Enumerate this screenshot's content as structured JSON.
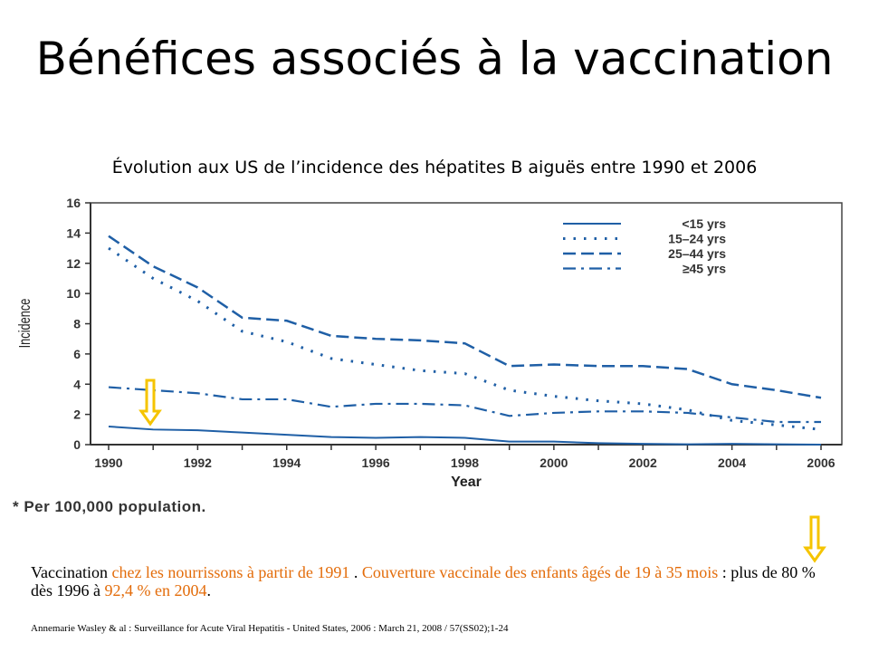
{
  "slide": {
    "title": "Bénéfices associés à la vaccination",
    "subtitle": "Évolution aux US de l’incidence des hépatites B aiguës entre 1990 et 2006",
    "footnote": "* Per 100,000 population.",
    "note": {
      "p1": "Vaccination ",
      "p2": "chez les nourrissons à partir de 1991 ",
      "p3": ". ",
      "p4": "Couverture vaccinale des enfants âgés de 19 à 35 mois",
      "p5": " : plus de 80 % dès 1996 à  ",
      "p6": "92,4 % en 2004",
      "p7": "."
    },
    "reference": "Annemarie Wasley & al : Surveillance for Acute Viral Hepatitis - United States, 2006 : March 21, 2008 / 57(SS02);1-24",
    "colors": {
      "series": "#1f5fa6",
      "accent_text": "#e36c0a",
      "arrow": "#f5c400"
    }
  },
  "chart_data": {
    "type": "line",
    "xlabel": "Year",
    "ylabel": "Incidence",
    "xlim": [
      1990,
      2006
    ],
    "ylim": [
      0,
      16
    ],
    "xticks": [
      "1990",
      "1992",
      "1994",
      "1996",
      "1998",
      "2000",
      "2002",
      "2004",
      "2006"
    ],
    "yticks": [
      "0",
      "2",
      "4",
      "6",
      "8",
      "10",
      "12",
      "14",
      "16"
    ],
    "legend_position": "top-right",
    "grid": false,
    "x": [
      1990,
      1991,
      1992,
      1993,
      1994,
      1995,
      1996,
      1997,
      1998,
      1999,
      2000,
      2001,
      2002,
      2003,
      2004,
      2005,
      2006
    ],
    "series": [
      {
        "name": "<15 yrs",
        "style": "solid",
        "values": [
          1.2,
          1.0,
          0.95,
          0.8,
          0.65,
          0.5,
          0.45,
          0.5,
          0.45,
          0.2,
          0.2,
          0.1,
          0.05,
          0.02,
          0.05,
          0.02,
          0.0
        ]
      },
      {
        "name": "15–24 yrs",
        "style": "dotted",
        "values": [
          13.0,
          11.0,
          9.5,
          7.5,
          6.8,
          5.7,
          5.3,
          4.9,
          4.7,
          3.6,
          3.2,
          2.9,
          2.7,
          2.3,
          1.6,
          1.3,
          1.0
        ]
      },
      {
        "name": "25–44 yrs",
        "style": "dashed",
        "values": [
          13.8,
          11.8,
          10.4,
          8.4,
          8.2,
          7.2,
          7.0,
          6.9,
          6.7,
          5.2,
          5.3,
          5.2,
          5.2,
          5.0,
          4.0,
          3.6,
          3.1
        ]
      },
      {
        "name": "≥45 yrs",
        "style": "dashdot",
        "values": [
          3.8,
          3.6,
          3.4,
          3.0,
          3.0,
          2.5,
          2.7,
          2.7,
          2.6,
          1.9,
          2.1,
          2.2,
          2.2,
          2.1,
          1.8,
          1.5,
          1.5
        ]
      }
    ]
  }
}
